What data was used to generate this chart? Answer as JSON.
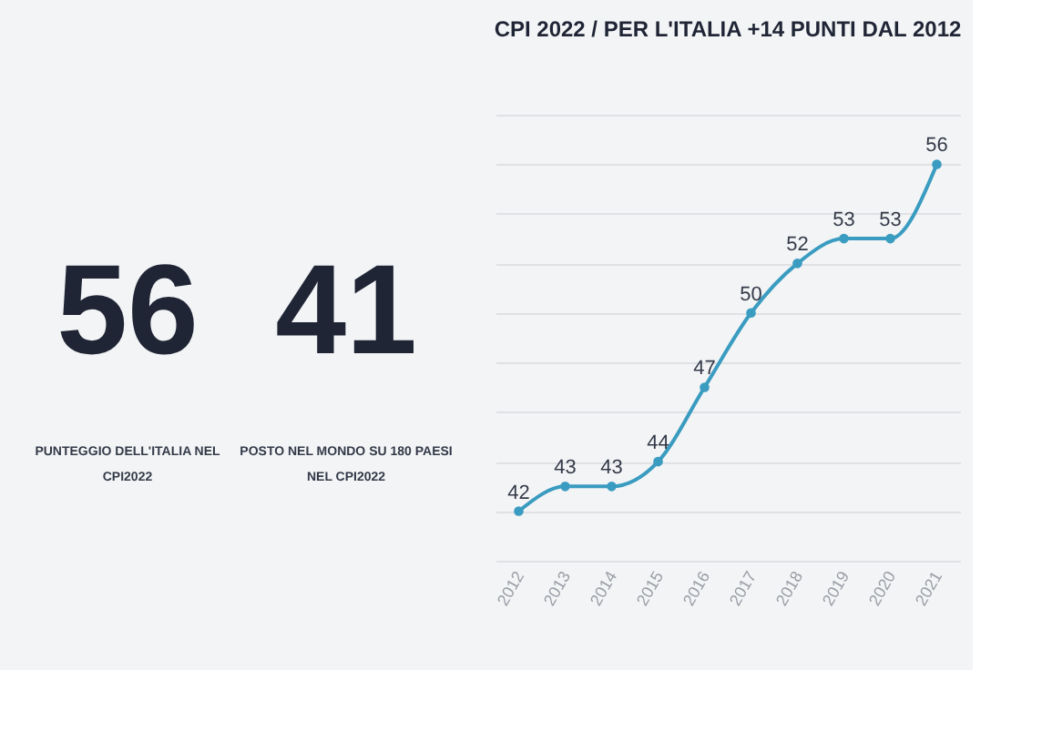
{
  "chart_data": [
    {
      "type": "other",
      "annotations": [
        "56",
        "PUNTEGGIO DELL'ITALIA NEL\nCPI2022",
        "41",
        "POSTO NEL MONDO SU 180 PAESI\nNEL CPI2022"
      ]
    },
    {
      "type": "line",
      "title": "CPI 2022 / PER L'ITALIA +14 PUNTI DAL 2012",
      "categories": [
        "2012",
        "2013",
        "2014",
        "2015",
        "2016",
        "2017",
        "2018",
        "2019",
        "2020",
        "2021"
      ],
      "series": [
        {
          "color": "#3a9cc0",
          "values": [
            42,
            43,
            43,
            44,
            47,
            50,
            52,
            53,
            53,
            56
          ]
        }
      ],
      "data_labels": true,
      "grid": "y",
      "tick_labels": "x",
      "marker": "circle",
      "line_style": "solid"
    }
  ]
}
